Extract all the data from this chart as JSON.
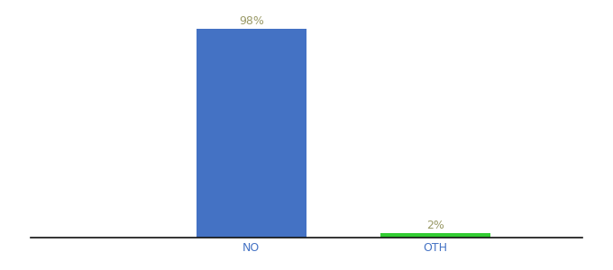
{
  "categories": [
    "NO",
    "OTH"
  ],
  "values": [
    98,
    2
  ],
  "bar_colors": [
    "#4472c4",
    "#33cc33"
  ],
  "value_labels": [
    "98%",
    "2%"
  ],
  "ylim": [
    0,
    105
  ],
  "background_color": "#ffffff",
  "label_color": "#999966",
  "axis_color": "#111111",
  "tick_color": "#4472c4",
  "bar_width": 0.6
}
